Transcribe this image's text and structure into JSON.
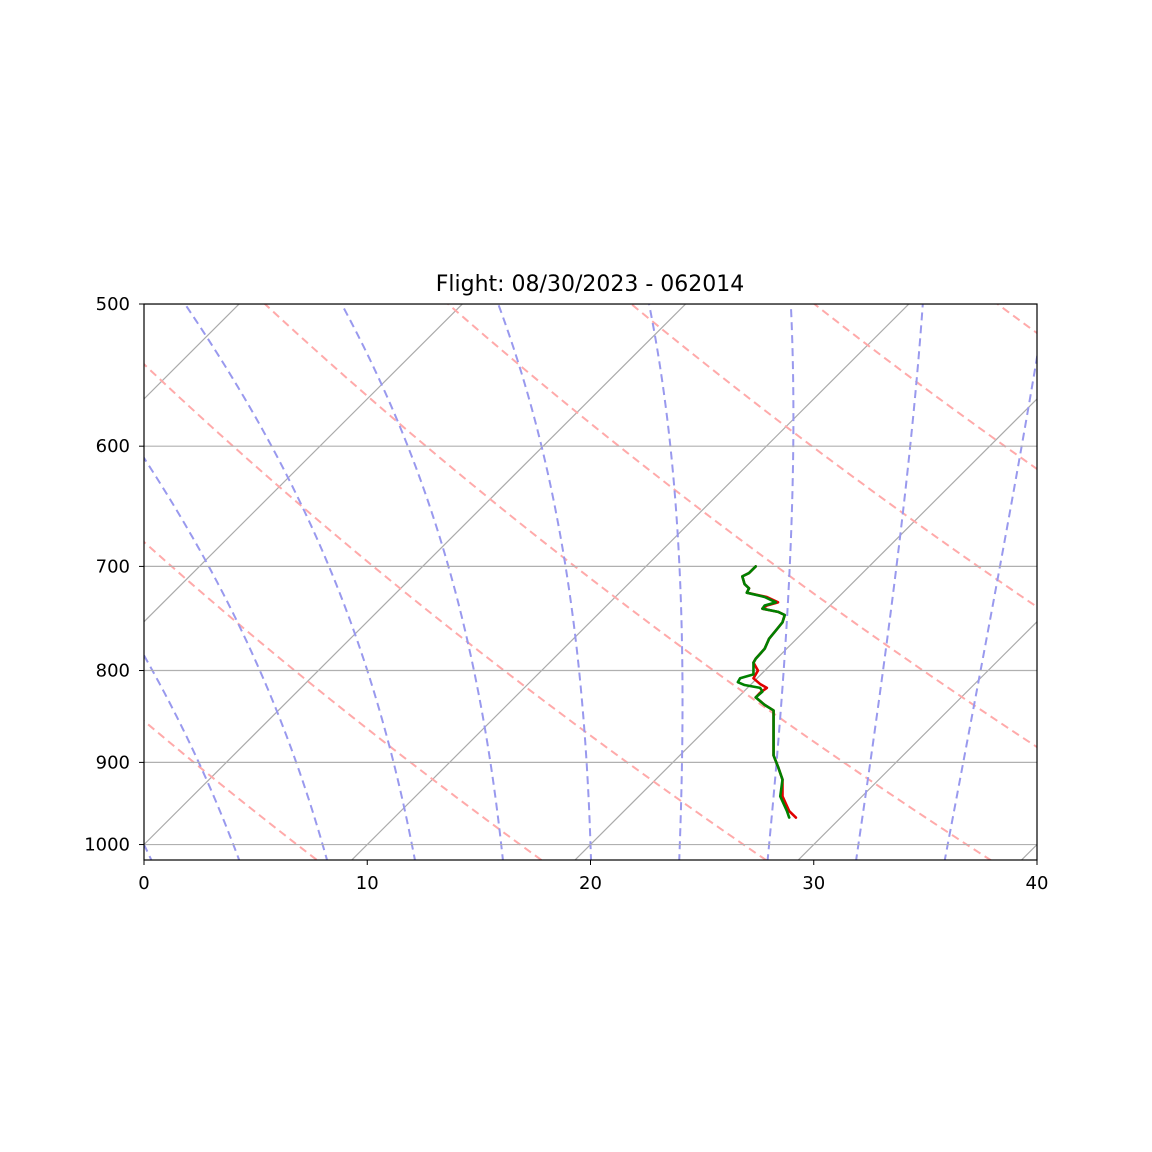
{
  "chart_data": {
    "type": "line",
    "title": "Flight: 08/30/2023 - 062014",
    "xlabel": "",
    "ylabel": "",
    "xlim": [
      0,
      40
    ],
    "ylim": [
      1020,
      500
    ],
    "yscale": "log",
    "x_ticks": [
      "0",
      "10",
      "20",
      "30",
      "40"
    ],
    "y_ticks": [
      "500",
      "600",
      "700",
      "800",
      "900",
      "1000"
    ],
    "grid": "horizontal",
    "colors": {
      "temperature": "#e00000",
      "second_series": "#008000",
      "skewed_isotherms": "#aaaaaa",
      "dry_adiabats": "#ffaaaa",
      "moist_adiabats": "#9999ee"
    },
    "series": [
      {
        "color": "red",
        "points": [
          [
            27.4,
            700
          ],
          [
            27.1,
            706
          ],
          [
            26.8,
            709
          ],
          [
            26.9,
            716
          ],
          [
            27.1,
            720
          ],
          [
            27.0,
            724
          ],
          [
            27.9,
            728
          ],
          [
            28.4,
            733
          ],
          [
            27.9,
            736
          ],
          [
            27.7,
            739
          ],
          [
            28.4,
            742
          ],
          [
            28.7,
            745
          ],
          [
            28.6,
            752
          ],
          [
            28.3,
            760
          ],
          [
            28.0,
            768
          ],
          [
            27.8,
            778
          ],
          [
            27.4,
            788
          ],
          [
            27.3,
            792
          ],
          [
            27.5,
            800
          ],
          [
            27.3,
            808
          ],
          [
            27.6,
            814
          ],
          [
            27.9,
            818
          ],
          [
            27.6,
            823
          ],
          [
            27.4,
            828
          ],
          [
            27.8,
            836
          ],
          [
            28.2,
            842
          ],
          [
            28.2,
            860
          ],
          [
            28.2,
            880
          ],
          [
            28.2,
            892
          ],
          [
            28.4,
            905
          ],
          [
            28.6,
            920
          ],
          [
            28.6,
            940
          ],
          [
            28.9,
            958
          ],
          [
            29.2,
            966
          ]
        ]
      },
      {
        "color": "green",
        "points": [
          [
            27.4,
            700
          ],
          [
            27.1,
            706
          ],
          [
            26.8,
            709
          ],
          [
            26.9,
            716
          ],
          [
            27.1,
            720
          ],
          [
            27.0,
            724
          ],
          [
            27.8,
            728
          ],
          [
            28.3,
            733
          ],
          [
            27.8,
            736
          ],
          [
            27.7,
            739
          ],
          [
            28.4,
            742
          ],
          [
            28.7,
            745
          ],
          [
            28.6,
            752
          ],
          [
            28.3,
            760
          ],
          [
            28.0,
            768
          ],
          [
            27.8,
            778
          ],
          [
            27.4,
            788
          ],
          [
            27.3,
            792
          ],
          [
            27.3,
            797
          ],
          [
            27.3,
            804
          ],
          [
            26.7,
            808
          ],
          [
            26.6,
            812
          ],
          [
            26.9,
            815
          ],
          [
            27.6,
            818
          ],
          [
            27.7,
            822
          ],
          [
            27.4,
            828
          ],
          [
            27.8,
            836
          ],
          [
            28.2,
            842
          ],
          [
            28.2,
            860
          ],
          [
            28.2,
            880
          ],
          [
            28.2,
            892
          ],
          [
            28.4,
            905
          ],
          [
            28.6,
            920
          ],
          [
            28.5,
            940
          ],
          [
            28.8,
            958
          ],
          [
            28.9,
            966
          ]
        ]
      }
    ],
    "skew_isotherms": [
      -60,
      -50,
      -40,
      -30,
      -20,
      -10,
      0,
      10,
      20,
      30,
      40
    ],
    "dry_adiabats_theta_K": [
      280,
      290,
      300,
      310,
      320,
      330,
      340,
      350,
      360,
      370,
      380,
      390,
      400,
      410,
      420
    ],
    "moist_adiabats_at_1000hPa": [
      -4,
      0,
      4,
      8,
      12,
      16,
      20,
      24,
      28,
      32,
      36
    ]
  }
}
